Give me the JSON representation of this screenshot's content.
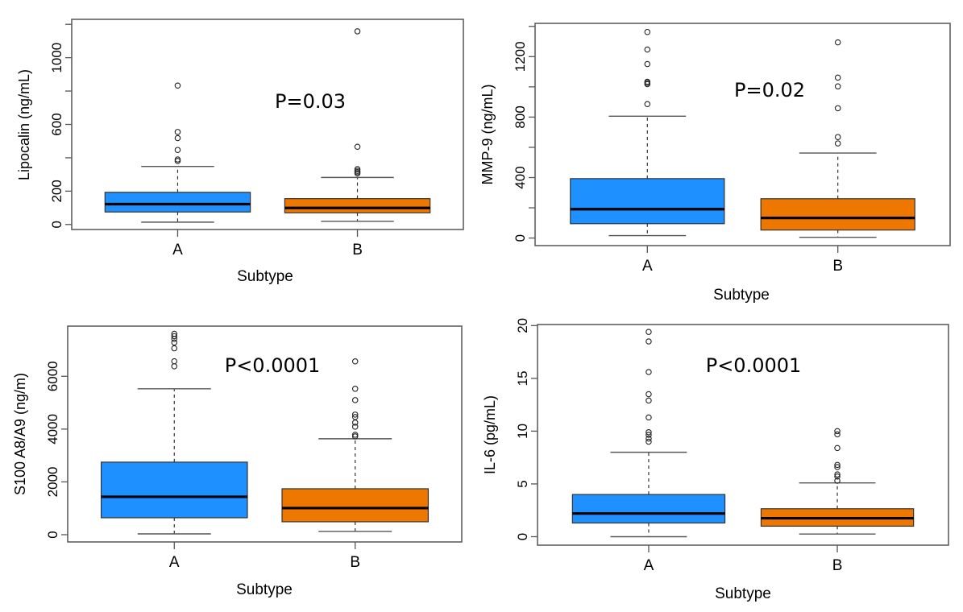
{
  "figure": {
    "colors": {
      "A": "#1E90FF",
      "B": "#EE7700",
      "frame": "#555555",
      "median": "#000000",
      "whisker": "#555555"
    }
  },
  "chart_data": [
    {
      "type": "boxplot",
      "panel": "top-left",
      "title": "",
      "xlabel": "Subtype",
      "ylabel": "Lipocalin (ng/mL)",
      "annotation": "P=0.03",
      "categories": [
        "A",
        "B"
      ],
      "yticks": [
        0,
        200,
        400,
        600,
        800,
        1000,
        1200
      ],
      "ytick_labels": [
        "0",
        "200",
        "",
        "600",
        "",
        "1000",
        ""
      ],
      "ylim": [
        -30,
        1230
      ],
      "grid": false,
      "series": [
        {
          "name": "A",
          "whisker_low": 14,
          "q1": 75,
          "median": 122,
          "q3": 193,
          "whisker_high": 348,
          "outliers": [
            381,
            390,
            447,
            518,
            555,
            833
          ]
        },
        {
          "name": "B",
          "whisker_low": 19,
          "q1": 70,
          "median": 99,
          "q3": 155,
          "whisker_high": 282,
          "outliers": [
            306,
            314,
            322,
            332,
            466,
            1158
          ]
        }
      ]
    },
    {
      "type": "boxplot",
      "panel": "top-right",
      "title": "",
      "xlabel": "Subtype",
      "ylabel": "MMP-9 (ng/mL)",
      "annotation": "P=0.02",
      "categories": [
        "A",
        "B"
      ],
      "yticks": [
        0,
        200,
        400,
        600,
        800,
        1000,
        1200,
        1400
      ],
      "ytick_labels": [
        "0",
        "",
        "400",
        "",
        "800",
        "",
        "1200",
        ""
      ],
      "ylim": [
        -50,
        1420
      ],
      "grid": false,
      "series": [
        {
          "name": "A",
          "whisker_low": 16,
          "q1": 95,
          "median": 191,
          "q3": 393,
          "whisker_high": 806,
          "outliers": [
            886,
            1018,
            1026,
            1034,
            1151,
            1247,
            1363
          ]
        },
        {
          "name": "B",
          "whisker_low": 5,
          "q1": 53,
          "median": 133,
          "q3": 260,
          "whisker_high": 562,
          "outliers": [
            626,
            668,
            859,
            1003,
            1061,
            1294
          ]
        }
      ]
    },
    {
      "type": "boxplot",
      "panel": "bottom-left",
      "title": "",
      "xlabel": "Subtype",
      "ylabel": "S100 A8/A9 (ng/m)",
      "annotation": "P<0.0001",
      "categories": [
        "A",
        "B"
      ],
      "yticks": [
        0,
        2000,
        4000,
        6000
      ],
      "ytick_labels": [
        "0",
        "2000",
        "4000",
        "6000"
      ],
      "ylim": [
        -275,
        7900
      ],
      "grid": false,
      "series": [
        {
          "name": "A",
          "whisker_low": 30,
          "q1": 641,
          "median": 1435,
          "q3": 2748,
          "whisker_high": 5527,
          "outliers": [
            6380,
            6570,
            7060,
            7280,
            7420,
            7520,
            7610
          ]
        },
        {
          "name": "B",
          "whisker_low": 122,
          "q1": 489,
          "median": 1008,
          "q3": 1740,
          "whisker_high": 3633,
          "outliers": [
            3725,
            3786,
            4092,
            4245,
            4457,
            4550,
            5099,
            5527,
            6565
          ]
        }
      ]
    },
    {
      "type": "boxplot",
      "panel": "bottom-right",
      "title": "",
      "xlabel": "Subtype",
      "ylabel": "IL-6 (pg/mL)",
      "annotation": "P<0.0001",
      "categories": [
        "A",
        "B"
      ],
      "yticks": [
        0,
        5,
        10,
        15,
        20
      ],
      "ytick_labels": [
        "0",
        "5",
        "10",
        "15",
        "20"
      ],
      "ylim": [
        -0.8,
        20.1
      ],
      "grid": false,
      "series": [
        {
          "name": "A",
          "whisker_low": 0.0,
          "q1": 1.3,
          "median": 2.2,
          "q3": 4.0,
          "whisker_high": 8.0,
          "outliers": [
            9.0,
            9.3,
            9.65,
            9.9,
            11.3,
            12.9,
            13.5,
            15.6,
            18.5,
            19.4
          ]
        },
        {
          "name": "B",
          "whisker_low": 0.25,
          "q1": 1.0,
          "median": 1.75,
          "q3": 2.65,
          "whisker_high": 5.1,
          "outliers": [
            5.3,
            5.7,
            5.9,
            6.6,
            6.8,
            8.4,
            9.7,
            10.0
          ]
        }
      ]
    }
  ]
}
